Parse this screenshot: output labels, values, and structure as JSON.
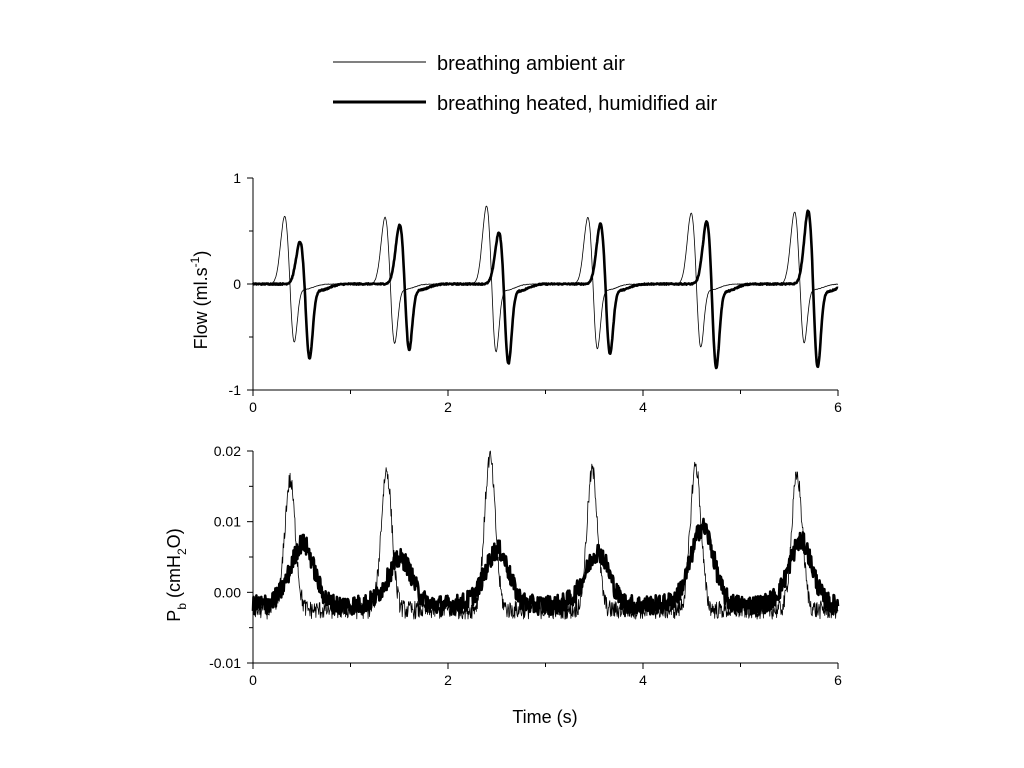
{
  "legend": [
    {
      "label": "breathing ambient air",
      "color": "#000000",
      "weight": "thin"
    },
    {
      "label": "breathing heated, humidified air",
      "color": "#000000",
      "weight": "thick"
    }
  ],
  "x_axis": {
    "label": "Time (s)",
    "ticks": [
      "0",
      "2",
      "4",
      "6"
    ]
  },
  "chart_data": [
    {
      "type": "line",
      "ylabel_parts": {
        "main": "Flow (ml.s",
        "sup": "-1",
        "tail": ")"
      },
      "xlim": [
        0,
        6
      ],
      "ylim": [
        -1,
        1
      ],
      "x_ticks": [
        "0",
        "2",
        "4",
        "6"
      ],
      "y_ticks": [
        "1",
        "0",
        "-1"
      ],
      "grid": false,
      "series": [
        {
          "weight": "thin",
          "breath_peaks_s": [
            0.33,
            1.36,
            2.4,
            3.44,
            4.5,
            5.56
          ],
          "peak_values": [
            0.67,
            0.66,
            0.77,
            0.66,
            0.7,
            0.71
          ],
          "trough_values": [
            -0.62,
            -0.63,
            -0.72,
            -0.68,
            -0.67,
            -0.63
          ]
        },
        {
          "weight": "thick",
          "breath_peaks_s": [
            0.49,
            1.51,
            2.53,
            3.57,
            4.66,
            5.7
          ],
          "peak_values": [
            0.43,
            0.59,
            0.52,
            0.6,
            0.63,
            0.73
          ],
          "trough_values": [
            -0.74,
            -0.68,
            -0.8,
            -0.72,
            -0.85,
            -0.86
          ]
        }
      ]
    },
    {
      "type": "line",
      "ylabel_parts": {
        "main": "P",
        "sub1": "b",
        "mid": " (cmH",
        "sub2": "2",
        "tail": "O)"
      },
      "xlim": [
        0,
        6
      ],
      "ylim": [
        -0.01,
        0.02
      ],
      "x_ticks": [
        "0",
        "2",
        "4",
        "6"
      ],
      "y_ticks": [
        "0.02",
        "0.01",
        "0.00",
        "-0.01"
      ],
      "grid": false,
      "series": [
        {
          "weight": "thin",
          "breath_peaks_s": [
            0.38,
            1.37,
            2.43,
            3.48,
            4.54,
            5.58
          ],
          "peak_values": [
            0.0158,
            0.0172,
            0.0191,
            0.0172,
            0.018,
            0.0165
          ],
          "baseline": -0.0025
        },
        {
          "weight": "thick",
          "breath_peaks_s": [
            0.52,
            1.53,
            2.52,
            3.55,
            4.62,
            5.63
          ],
          "peak_values": [
            0.0062,
            0.004,
            0.0053,
            0.005,
            0.0085,
            0.0065
          ],
          "baseline": -0.0018
        }
      ]
    }
  ]
}
